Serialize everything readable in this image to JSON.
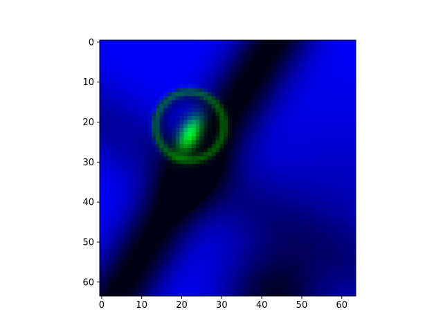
{
  "chart_data": {
    "type": "heatmap",
    "title": "",
    "xlabel": "",
    "ylabel": "",
    "grid": false,
    "xlim": [
      -0.5,
      63.5
    ],
    "ylim": [
      63.5,
      -0.5
    ],
    "xticks": [
      0,
      10,
      20,
      30,
      40,
      50,
      60
    ],
    "yticks": [
      0,
      10,
      20,
      30,
      40,
      50,
      60
    ],
    "xtick_labels": [
      "0",
      "10",
      "20",
      "30",
      "40",
      "50",
      "60"
    ],
    "ytick_labels": [
      "0",
      "10",
      "20",
      "30",
      "40",
      "50",
      "60"
    ],
    "image_size": [
      64,
      64
    ],
    "channels": {
      "blue": {
        "description": "smooth background field, bright at upper-left and lower-left, dark diagonal band from top (~x=43) toward lower-left and a second dark band reaching the bottom near x=43",
        "peak_color": "#0000ff",
        "dark_color": "#000000"
      },
      "green": {
        "description": "bright blob inside a circular ring",
        "ring_center": [
          22,
          21
        ],
        "ring_radius": 8.5,
        "blob_center": [
          22,
          23
        ],
        "peak_color": "#00ff00"
      }
    }
  }
}
